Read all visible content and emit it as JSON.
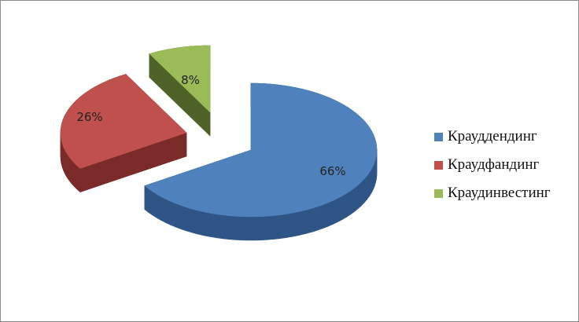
{
  "chart_data": {
    "type": "pie",
    "style": "3d-exploded",
    "categories": [
      "Крауддендинг",
      "Краудфандинг",
      "Краудинвестинг"
    ],
    "values": [
      66,
      26,
      8
    ],
    "labels": [
      "66%",
      "26%",
      "8%"
    ],
    "colors": [
      "#4f81bd",
      "#c0504d",
      "#9bbb59"
    ],
    "side_colors": [
      "#2f5486",
      "#7a2a28",
      "#4f6228"
    ],
    "legend_position": "right"
  }
}
